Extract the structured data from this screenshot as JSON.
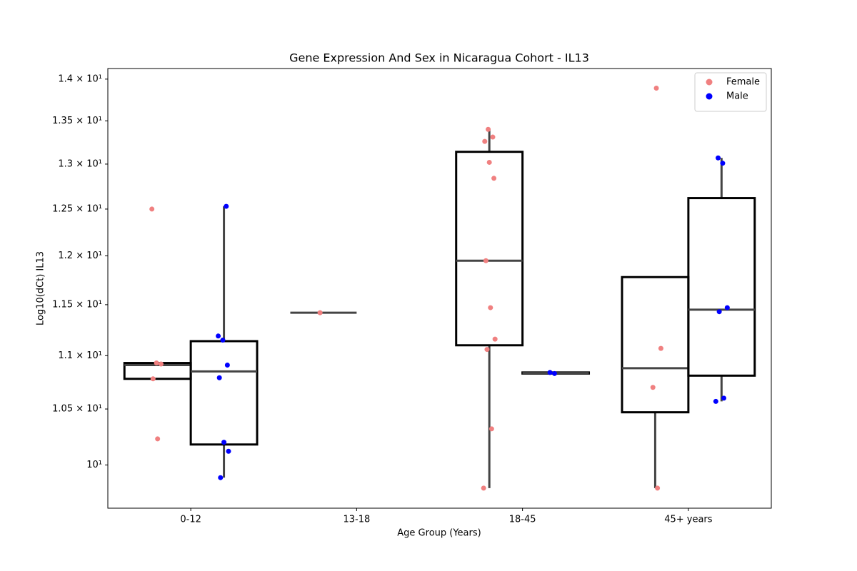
{
  "chart_data": {
    "type": "box",
    "title": "Gene Expression And Sex in Nicaragua Cohort - IL13",
    "xlabel": "Age Group (Years)",
    "ylabel": "Log10(dCt) IL13",
    "categories": [
      "0-12",
      "13-18",
      "18-45",
      "45+ years"
    ],
    "yscale": "log",
    "ylim": [
      9.63,
      14.13
    ],
    "yticks": [
      {
        "value": 10,
        "label": "10¹"
      },
      {
        "value": 10.5,
        "label": "1.05 × 10¹"
      },
      {
        "value": 11,
        "label": "1.1 × 10¹"
      },
      {
        "value": 11.5,
        "label": "1.15 × 10¹"
      },
      {
        "value": 12,
        "label": "1.2 × 10¹"
      },
      {
        "value": 12.5,
        "label": "1.25 × 10¹"
      },
      {
        "value": 13,
        "label": "1.3 × 10¹"
      },
      {
        "value": 13.5,
        "label": "1.35 × 10¹"
      },
      {
        "value": 14,
        "label": "1.4 × 10¹"
      }
    ],
    "legend": "upper right",
    "box_edge_color": "#000000",
    "whisker_color": "#444444",
    "series": [
      {
        "name": "Female",
        "color": "#f08080",
        "boxes": [
          {
            "whislo": 10.78,
            "q1": 10.78,
            "med": 10.91,
            "q3": 10.93,
            "whishi": 10.93
          },
          {
            "whislo": 11.42,
            "q1": 11.42,
            "med": 11.42,
            "q3": 11.42,
            "whishi": 11.42
          },
          {
            "whislo": 9.8,
            "q1": 11.1,
            "med": 11.95,
            "q3": 13.14,
            "whishi": 13.4
          },
          {
            "whislo": 9.8,
            "q1": 10.47,
            "med": 10.88,
            "q3": 11.78,
            "whishi": 11.78
          }
        ],
        "points": [
          [
            12.5,
            10.93,
            10.92,
            10.78,
            10.23
          ],
          [
            11.42
          ],
          [
            13.4,
            13.31,
            13.26,
            13.02,
            12.84,
            11.95,
            11.47,
            11.16,
            11.06,
            10.32,
            9.8
          ],
          [
            13.89,
            11.07,
            10.7,
            9.8
          ]
        ]
      },
      {
        "name": "Male",
        "color": "#0000ff",
        "boxes": [
          {
            "whislo": 9.89,
            "q1": 10.18,
            "med": 10.85,
            "q3": 11.14,
            "whishi": 12.53
          },
          null,
          {
            "whislo": 10.83,
            "q1": 10.83,
            "med": 10.835,
            "q3": 10.84,
            "whishi": 10.84
          },
          {
            "whislo": 10.57,
            "q1": 10.81,
            "med": 11.45,
            "q3": 12.62,
            "whishi": 13.07
          }
        ],
        "points": [
          [
            12.53,
            11.19,
            11.15,
            10.91,
            10.79,
            10.2,
            10.12,
            9.89
          ],
          [],
          [
            10.84,
            10.83
          ],
          [
            13.07,
            13.01,
            11.47,
            11.43,
            10.6,
            10.57
          ]
        ]
      }
    ]
  }
}
